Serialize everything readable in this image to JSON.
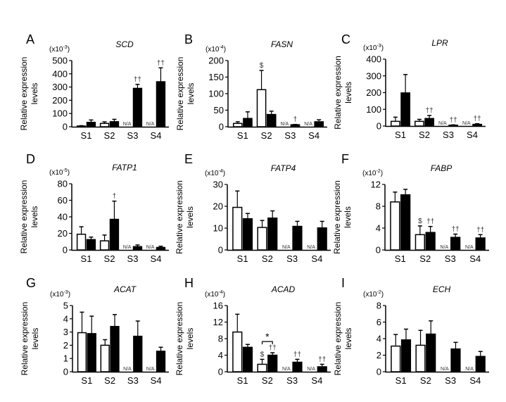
{
  "figure": {
    "y_axis_label_line1": "Relative expression",
    "y_axis_label_line2": "levels",
    "categories": [
      "S1",
      "S2",
      "S3",
      "S4"
    ],
    "series_names": [
      "open (white) bars",
      "filled (black) bars"
    ],
    "colors": {
      "open": "#ffffff",
      "filled": "#000000",
      "axis": "#000000",
      "annotation": "#333333"
    },
    "na_label": "N/A"
  },
  "chart_data": [
    {
      "panel": "A",
      "title": "SCD",
      "type": "bar",
      "scale_label": "(x10-3)",
      "scale_base": "x10",
      "scale_exp": "-3",
      "categories": [
        "S1",
        "S2",
        "S3",
        "S4"
      ],
      "ylim": [
        0,
        500
      ],
      "yticks": [
        0,
        100,
        200,
        300,
        400,
        500
      ],
      "series": [
        {
          "name": "open",
          "values": [
            5,
            25,
            null,
            null
          ],
          "errors": [
            3,
            12,
            null,
            null
          ]
        },
        {
          "name": "filled",
          "values": [
            33,
            38,
            290,
            340
          ],
          "errors": [
            18,
            18,
            30,
            105
          ]
        }
      ],
      "annotations": [
        {
          "category": "S3",
          "series": "filled",
          "text": "††"
        },
        {
          "category": "S4",
          "series": "filled",
          "text": "††"
        }
      ],
      "na": [
        "S3",
        "S4"
      ]
    },
    {
      "panel": "B",
      "title": "FASN",
      "type": "bar",
      "scale_label": "(x10-4)",
      "scale_base": "x10",
      "scale_exp": "-4",
      "categories": [
        "S1",
        "S2",
        "S3",
        "S4"
      ],
      "ylim": [
        0,
        200
      ],
      "yticks": [
        0,
        50,
        100,
        150,
        200
      ],
      "series": [
        {
          "name": "open",
          "values": [
            10,
            112,
            null,
            null
          ],
          "errors": [
            5,
            58,
            null,
            null
          ]
        },
        {
          "name": "filled",
          "values": [
            25,
            37,
            6,
            15
          ],
          "errors": [
            20,
            10,
            1,
            6
          ]
        }
      ],
      "annotations": [
        {
          "category": "S2",
          "series": "open",
          "text": "$"
        },
        {
          "category": "S3",
          "series": "filled",
          "text": "†"
        }
      ],
      "na": [
        "S3",
        "S4"
      ]
    },
    {
      "panel": "C",
      "title": "LPR",
      "type": "bar",
      "scale_label": "(x10-3)",
      "scale_base": "x10",
      "scale_exp": "-3",
      "categories": [
        "S1",
        "S2",
        "S3",
        "S4"
      ],
      "ylim": [
        0,
        400
      ],
      "yticks": [
        0,
        100,
        200,
        300,
        400
      ],
      "series": [
        {
          "name": "open",
          "values": [
            28,
            28,
            null,
            null
          ],
          "errors": [
            25,
            12,
            null,
            null
          ]
        },
        {
          "name": "filled",
          "values": [
            198,
            45,
            5,
            10
          ],
          "errors": [
            110,
            18,
            2,
            4
          ]
        }
      ],
      "annotations": [
        {
          "category": "S2",
          "series": "filled",
          "text": "††"
        },
        {
          "category": "S3",
          "series": "filled",
          "text": "††"
        },
        {
          "category": "S4",
          "series": "filled",
          "text": "††"
        }
      ],
      "na": [
        "S3",
        "S4"
      ]
    },
    {
      "panel": "D",
      "title": "FATP1",
      "type": "bar",
      "scale_label": "(x10-5)",
      "scale_base": "x10",
      "scale_exp": "-5",
      "categories": [
        "S1",
        "S2",
        "S3",
        "S4"
      ],
      "ylim": [
        0,
        80
      ],
      "yticks": [
        0,
        20,
        40,
        60,
        80
      ],
      "series": [
        {
          "name": "open",
          "values": [
            19,
            11,
            null,
            null
          ],
          "errors": [
            9,
            7,
            null,
            null
          ]
        },
        {
          "name": "filled",
          "values": [
            12.5,
            37,
            4,
            3
          ],
          "errors": [
            3,
            22,
            2,
            1.5
          ]
        }
      ],
      "annotations": [
        {
          "category": "S2",
          "series": "filled",
          "text": "†"
        }
      ],
      "na": [
        "S3",
        "S4"
      ]
    },
    {
      "panel": "E",
      "title": "FATP4",
      "type": "bar",
      "scale_label": "(x10-4)",
      "scale_base": "x10",
      "scale_exp": "-4",
      "categories": [
        "S1",
        "S2",
        "S3",
        "S4"
      ],
      "ylim": [
        0,
        30
      ],
      "yticks": [
        0,
        10,
        20,
        30
      ],
      "series": [
        {
          "name": "open",
          "values": [
            19.5,
            10.3,
            null,
            null
          ],
          "errors": [
            7.5,
            3.2,
            null,
            null
          ]
        },
        {
          "name": "filled",
          "values": [
            14.3,
            14.6,
            10.8,
            10.1
          ],
          "errors": [
            2.4,
            3.3,
            2.3,
            3
          ]
        }
      ],
      "annotations": [],
      "na": [
        "S3",
        "S4"
      ]
    },
    {
      "panel": "F",
      "title": "FABP",
      "type": "bar",
      "scale_label": "(x10-2)",
      "scale_base": "x10",
      "scale_exp": "-2",
      "categories": [
        "S1",
        "S2",
        "S3",
        "S4"
      ],
      "ylim": [
        0,
        12
      ],
      "yticks": [
        0,
        4,
        8,
        12
      ],
      "series": [
        {
          "name": "open",
          "values": [
            8.8,
            2.8,
            null,
            null
          ],
          "errors": [
            1.8,
            1.6,
            null,
            null
          ]
        },
        {
          "name": "filled",
          "values": [
            10.1,
            3.2,
            2.3,
            2.2
          ],
          "errors": [
            1,
            1.1,
            0.6,
            0.6
          ]
        }
      ],
      "annotations": [
        {
          "category": "S2",
          "series": "open",
          "text": "$"
        },
        {
          "category": "S2",
          "series": "filled",
          "text": "††"
        },
        {
          "category": "S3",
          "series": "filled",
          "text": "††"
        },
        {
          "category": "S4",
          "series": "filled",
          "text": "††"
        }
      ],
      "na": [
        "S3",
        "S4"
      ]
    },
    {
      "panel": "G",
      "title": "ACAT",
      "type": "bar",
      "scale_label": "(x10-3)",
      "scale_base": "x10",
      "scale_exp": "-3",
      "categories": [
        "S1",
        "S2",
        "S3",
        "S4"
      ],
      "ylim": [
        0,
        5
      ],
      "yticks": [
        0,
        1,
        2,
        3,
        4,
        5
      ],
      "series": [
        {
          "name": "open",
          "values": [
            2.95,
            2.0,
            null,
            null
          ],
          "errors": [
            1.55,
            0.42,
            null,
            null
          ]
        },
        {
          "name": "filled",
          "values": [
            2.88,
            3.42,
            2.68,
            1.55
          ],
          "errors": [
            1.32,
            0.9,
            1.15,
            0.3
          ]
        }
      ],
      "annotations": [],
      "na": [
        "S3",
        "S4"
      ]
    },
    {
      "panel": "H",
      "title": "ACAD",
      "type": "bar",
      "scale_label": "(x10-4)",
      "scale_base": "x10",
      "scale_exp": "-4",
      "categories": [
        "S1",
        "S2",
        "S3",
        "S4"
      ],
      "ylim": [
        0,
        16
      ],
      "yticks": [
        0,
        4,
        8,
        12,
        16
      ],
      "series": [
        {
          "name": "open",
          "values": [
            9.6,
            1.8,
            null,
            null
          ],
          "errors": [
            4.3,
            1.2,
            null,
            null
          ]
        },
        {
          "name": "filled",
          "values": [
            5.9,
            4.0,
            2.3,
            1.2
          ],
          "errors": [
            0.7,
            0.6,
            0.7,
            0.6
          ]
        }
      ],
      "annotations": [
        {
          "category": "S2",
          "series": "open",
          "text": "$"
        },
        {
          "category": "S2",
          "series": "filled",
          "text": "††"
        },
        {
          "category": "S3",
          "series": "filled",
          "text": "††"
        },
        {
          "category": "S4",
          "series": "filled",
          "text": "††"
        }
      ],
      "bracket": {
        "category": "S2",
        "text": "*"
      },
      "na": [
        "S3",
        "S4"
      ]
    },
    {
      "panel": "I",
      "title": "ECH",
      "type": "bar",
      "scale_label": "(x10-2)",
      "scale_base": "x10",
      "scale_exp": "-2",
      "categories": [
        "S1",
        "S2",
        "S3",
        "S4"
      ],
      "ylim": [
        0,
        8
      ],
      "yticks": [
        0,
        2,
        4,
        6,
        8
      ],
      "series": [
        {
          "name": "open",
          "values": [
            3.1,
            3.2,
            null,
            null
          ],
          "errors": [
            1.4,
            1.8,
            null,
            null
          ]
        },
        {
          "name": "filled",
          "values": [
            3.85,
            4.55,
            2.75,
            1.85
          ],
          "errors": [
            1.3,
            1.6,
            0.8,
            0.6
          ]
        }
      ],
      "annotations": [],
      "na": [
        "S3",
        "S4"
      ]
    }
  ]
}
